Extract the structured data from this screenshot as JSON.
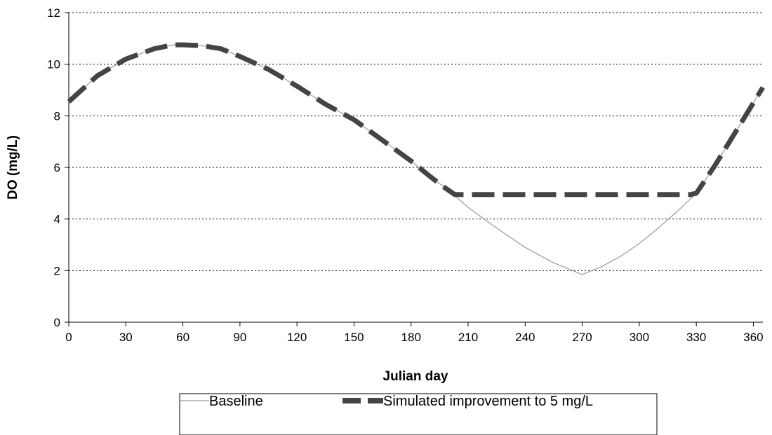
{
  "chart_data": {
    "type": "line",
    "title": "",
    "xlabel": "Julian day",
    "ylabel": "DO (mg/L)",
    "xlim": [
      0,
      365
    ],
    "ylim": [
      0,
      12
    ],
    "xticks": [
      0,
      30,
      60,
      90,
      120,
      150,
      180,
      210,
      240,
      270,
      300,
      330,
      360
    ],
    "yticks": [
      0,
      2,
      4,
      6,
      8,
      10,
      12
    ],
    "grid": "horizontal dotted",
    "legend_position": "bottom",
    "series": [
      {
        "name": "Baseline",
        "color": "#999999",
        "style": "thin-solid",
        "x": [
          0,
          15,
          30,
          45,
          55,
          60,
          70,
          80,
          90,
          105,
          120,
          135,
          150,
          165,
          180,
          190,
          200,
          210,
          225,
          240,
          255,
          265,
          270,
          280,
          290,
          300,
          310,
          320,
          330,
          340,
          350,
          365
        ],
        "y": [
          8.55,
          9.55,
          10.2,
          10.6,
          10.75,
          10.75,
          10.72,
          10.6,
          10.3,
          9.8,
          9.15,
          8.45,
          7.85,
          7.05,
          6.25,
          5.65,
          5.1,
          4.45,
          3.65,
          2.9,
          2.3,
          2.0,
          1.85,
          2.15,
          2.55,
          3.05,
          3.65,
          4.3,
          5.0,
          6.1,
          7.3,
          9.1
        ]
      },
      {
        "name": "Simulated improvement to 5 mg/L",
        "color": "#444444",
        "style": "thick-dashed",
        "x": [
          0,
          15,
          30,
          45,
          55,
          60,
          70,
          80,
          90,
          105,
          120,
          135,
          150,
          165,
          180,
          190,
          197,
          203,
          327,
          330,
          340,
          350,
          365
        ],
        "y": [
          8.55,
          9.55,
          10.2,
          10.6,
          10.75,
          10.75,
          10.72,
          10.6,
          10.3,
          9.8,
          9.15,
          8.45,
          7.85,
          7.05,
          6.25,
          5.65,
          5.25,
          4.95,
          4.95,
          5.0,
          6.1,
          7.3,
          9.1
        ]
      }
    ]
  }
}
